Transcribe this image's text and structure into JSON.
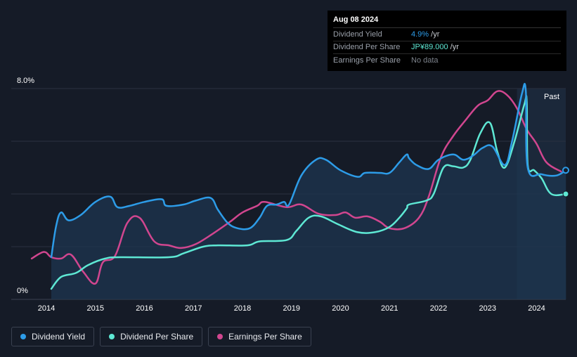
{
  "tooltip": {
    "date": "Aug 08 2024",
    "rows": [
      {
        "label": "Dividend Yield",
        "value": "4.9%",
        "unit": " /yr",
        "color": "#2d9ce8"
      },
      {
        "label": "Dividend Per Share",
        "value": "JP¥89.000",
        "unit": " /yr",
        "color": "#5ee8d4"
      },
      {
        "label": "Earnings Per Share",
        "value": "No data",
        "unit": "",
        "color": "#7d838c"
      }
    ]
  },
  "past_label": "Past",
  "legend": [
    {
      "label": "Dividend Yield",
      "color": "#2d9ce8"
    },
    {
      "label": "Dividend Per Share",
      "color": "#5ee8d4"
    },
    {
      "label": "Earnings Per Share",
      "color": "#d1468f"
    }
  ],
  "chart_data": {
    "type": "line",
    "title": "",
    "xlabel": "",
    "ylabel": "",
    "x_range": [
      2013.7,
      2024.6
    ],
    "ylim": [
      0,
      8
    ],
    "y_tick_labels": [
      "8.0%",
      "0%"
    ],
    "x_ticks": [
      2014,
      2015,
      2016,
      2017,
      2018,
      2019,
      2020,
      2021,
      2022,
      2023,
      2024
    ],
    "x_tick_labels": [
      "2014",
      "2015",
      "2016",
      "2017",
      "2018",
      "2019",
      "2020",
      "2021",
      "2022",
      "2023",
      "2024"
    ],
    "series": [
      {
        "name": "Dividend Yield",
        "color": "#2d9ce8",
        "points": [
          [
            2014.1,
            1.6
          ],
          [
            2014.2,
            2.8
          ],
          [
            2014.3,
            3.3
          ],
          [
            2014.45,
            3.0
          ],
          [
            2014.7,
            3.2
          ],
          [
            2015.0,
            3.7
          ],
          [
            2015.3,
            3.9
          ],
          [
            2015.45,
            3.5
          ],
          [
            2015.7,
            3.55
          ],
          [
            2016.0,
            3.7
          ],
          [
            2016.35,
            3.8
          ],
          [
            2016.45,
            3.55
          ],
          [
            2016.8,
            3.6
          ],
          [
            2017.05,
            3.75
          ],
          [
            2017.35,
            3.85
          ],
          [
            2017.5,
            3.4
          ],
          [
            2017.7,
            2.9
          ],
          [
            2017.9,
            2.7
          ],
          [
            2018.15,
            2.7
          ],
          [
            2018.35,
            3.1
          ],
          [
            2018.5,
            3.55
          ],
          [
            2018.7,
            3.6
          ],
          [
            2018.85,
            3.7
          ],
          [
            2018.95,
            3.6
          ],
          [
            2019.2,
            4.7
          ],
          [
            2019.5,
            5.3
          ],
          [
            2019.7,
            5.3
          ],
          [
            2020.0,
            4.9
          ],
          [
            2020.35,
            4.65
          ],
          [
            2020.5,
            4.8
          ],
          [
            2020.8,
            4.8
          ],
          [
            2021.0,
            4.8
          ],
          [
            2021.2,
            5.2
          ],
          [
            2021.35,
            5.5
          ],
          [
            2021.4,
            5.35
          ],
          [
            2021.55,
            5.1
          ],
          [
            2021.8,
            4.95
          ],
          [
            2022.0,
            5.3
          ],
          [
            2022.3,
            5.5
          ],
          [
            2022.5,
            5.3
          ],
          [
            2022.7,
            5.45
          ],
          [
            2022.9,
            5.75
          ],
          [
            2023.1,
            5.8
          ],
          [
            2023.35,
            5.1
          ],
          [
            2023.5,
            6.0
          ],
          [
            2023.7,
            7.8
          ],
          [
            2023.78,
            7.9
          ],
          [
            2023.82,
            5.0
          ],
          [
            2024.1,
            4.75
          ],
          [
            2024.4,
            4.7
          ],
          [
            2024.6,
            4.9
          ]
        ]
      },
      {
        "name": "Dividend Per Share",
        "color": "#5ee8d4",
        "points": [
          [
            2014.1,
            0.4
          ],
          [
            2014.3,
            0.85
          ],
          [
            2014.6,
            1.0
          ],
          [
            2014.85,
            1.3
          ],
          [
            2015.2,
            1.55
          ],
          [
            2015.5,
            1.6
          ],
          [
            2016.5,
            1.6
          ],
          [
            2016.8,
            1.75
          ],
          [
            2017.2,
            2.0
          ],
          [
            2017.5,
            2.05
          ],
          [
            2018.1,
            2.05
          ],
          [
            2018.35,
            2.2
          ],
          [
            2018.9,
            2.25
          ],
          [
            2019.1,
            2.6
          ],
          [
            2019.35,
            3.1
          ],
          [
            2019.6,
            3.15
          ],
          [
            2019.95,
            2.85
          ],
          [
            2020.35,
            2.55
          ],
          [
            2020.7,
            2.55
          ],
          [
            2021.0,
            2.75
          ],
          [
            2021.2,
            3.1
          ],
          [
            2021.35,
            3.45
          ],
          [
            2021.4,
            3.6
          ],
          [
            2021.75,
            3.75
          ],
          [
            2021.9,
            4.0
          ],
          [
            2022.1,
            5.0
          ],
          [
            2022.3,
            5.05
          ],
          [
            2022.5,
            5.0
          ],
          [
            2022.65,
            5.3
          ],
          [
            2022.85,
            6.3
          ],
          [
            2023.05,
            6.7
          ],
          [
            2023.2,
            5.6
          ],
          [
            2023.35,
            5.0
          ],
          [
            2023.55,
            6.0
          ],
          [
            2023.75,
            7.4
          ],
          [
            2023.8,
            7.5
          ],
          [
            2023.82,
            5.1
          ],
          [
            2023.95,
            4.9
          ],
          [
            2024.1,
            4.6
          ],
          [
            2024.3,
            4.0
          ],
          [
            2024.6,
            4.0
          ]
        ]
      },
      {
        "name": "Earnings Per Share",
        "color": "#d1468f",
        "points": [
          [
            2013.7,
            1.55
          ],
          [
            2013.95,
            1.8
          ],
          [
            2014.1,
            1.6
          ],
          [
            2014.3,
            1.55
          ],
          [
            2014.5,
            1.7
          ],
          [
            2014.75,
            1.05
          ],
          [
            2015.0,
            0.6
          ],
          [
            2015.15,
            1.4
          ],
          [
            2015.4,
            1.65
          ],
          [
            2015.65,
            2.9
          ],
          [
            2015.9,
            3.1
          ],
          [
            2016.2,
            2.2
          ],
          [
            2016.5,
            2.05
          ],
          [
            2016.75,
            1.95
          ],
          [
            2017.05,
            2.1
          ],
          [
            2017.4,
            2.5
          ],
          [
            2017.75,
            2.95
          ],
          [
            2018.0,
            3.3
          ],
          [
            2018.3,
            3.55
          ],
          [
            2018.45,
            3.7
          ],
          [
            2018.9,
            3.5
          ],
          [
            2019.2,
            3.6
          ],
          [
            2019.55,
            3.25
          ],
          [
            2019.9,
            3.2
          ],
          [
            2020.1,
            3.3
          ],
          [
            2020.3,
            3.1
          ],
          [
            2020.55,
            3.15
          ],
          [
            2020.8,
            2.95
          ],
          [
            2021.0,
            2.7
          ],
          [
            2021.3,
            2.7
          ],
          [
            2021.6,
            3.1
          ],
          [
            2021.8,
            3.9
          ],
          [
            2022.05,
            5.4
          ],
          [
            2022.3,
            6.2
          ],
          [
            2022.55,
            6.8
          ],
          [
            2022.8,
            7.35
          ],
          [
            2023.0,
            7.55
          ],
          [
            2023.2,
            7.9
          ],
          [
            2023.4,
            7.75
          ],
          [
            2023.6,
            7.25
          ],
          [
            2023.8,
            6.45
          ],
          [
            2024.0,
            5.9
          ],
          [
            2024.2,
            5.2
          ],
          [
            2024.5,
            4.85
          ]
        ]
      }
    ]
  }
}
